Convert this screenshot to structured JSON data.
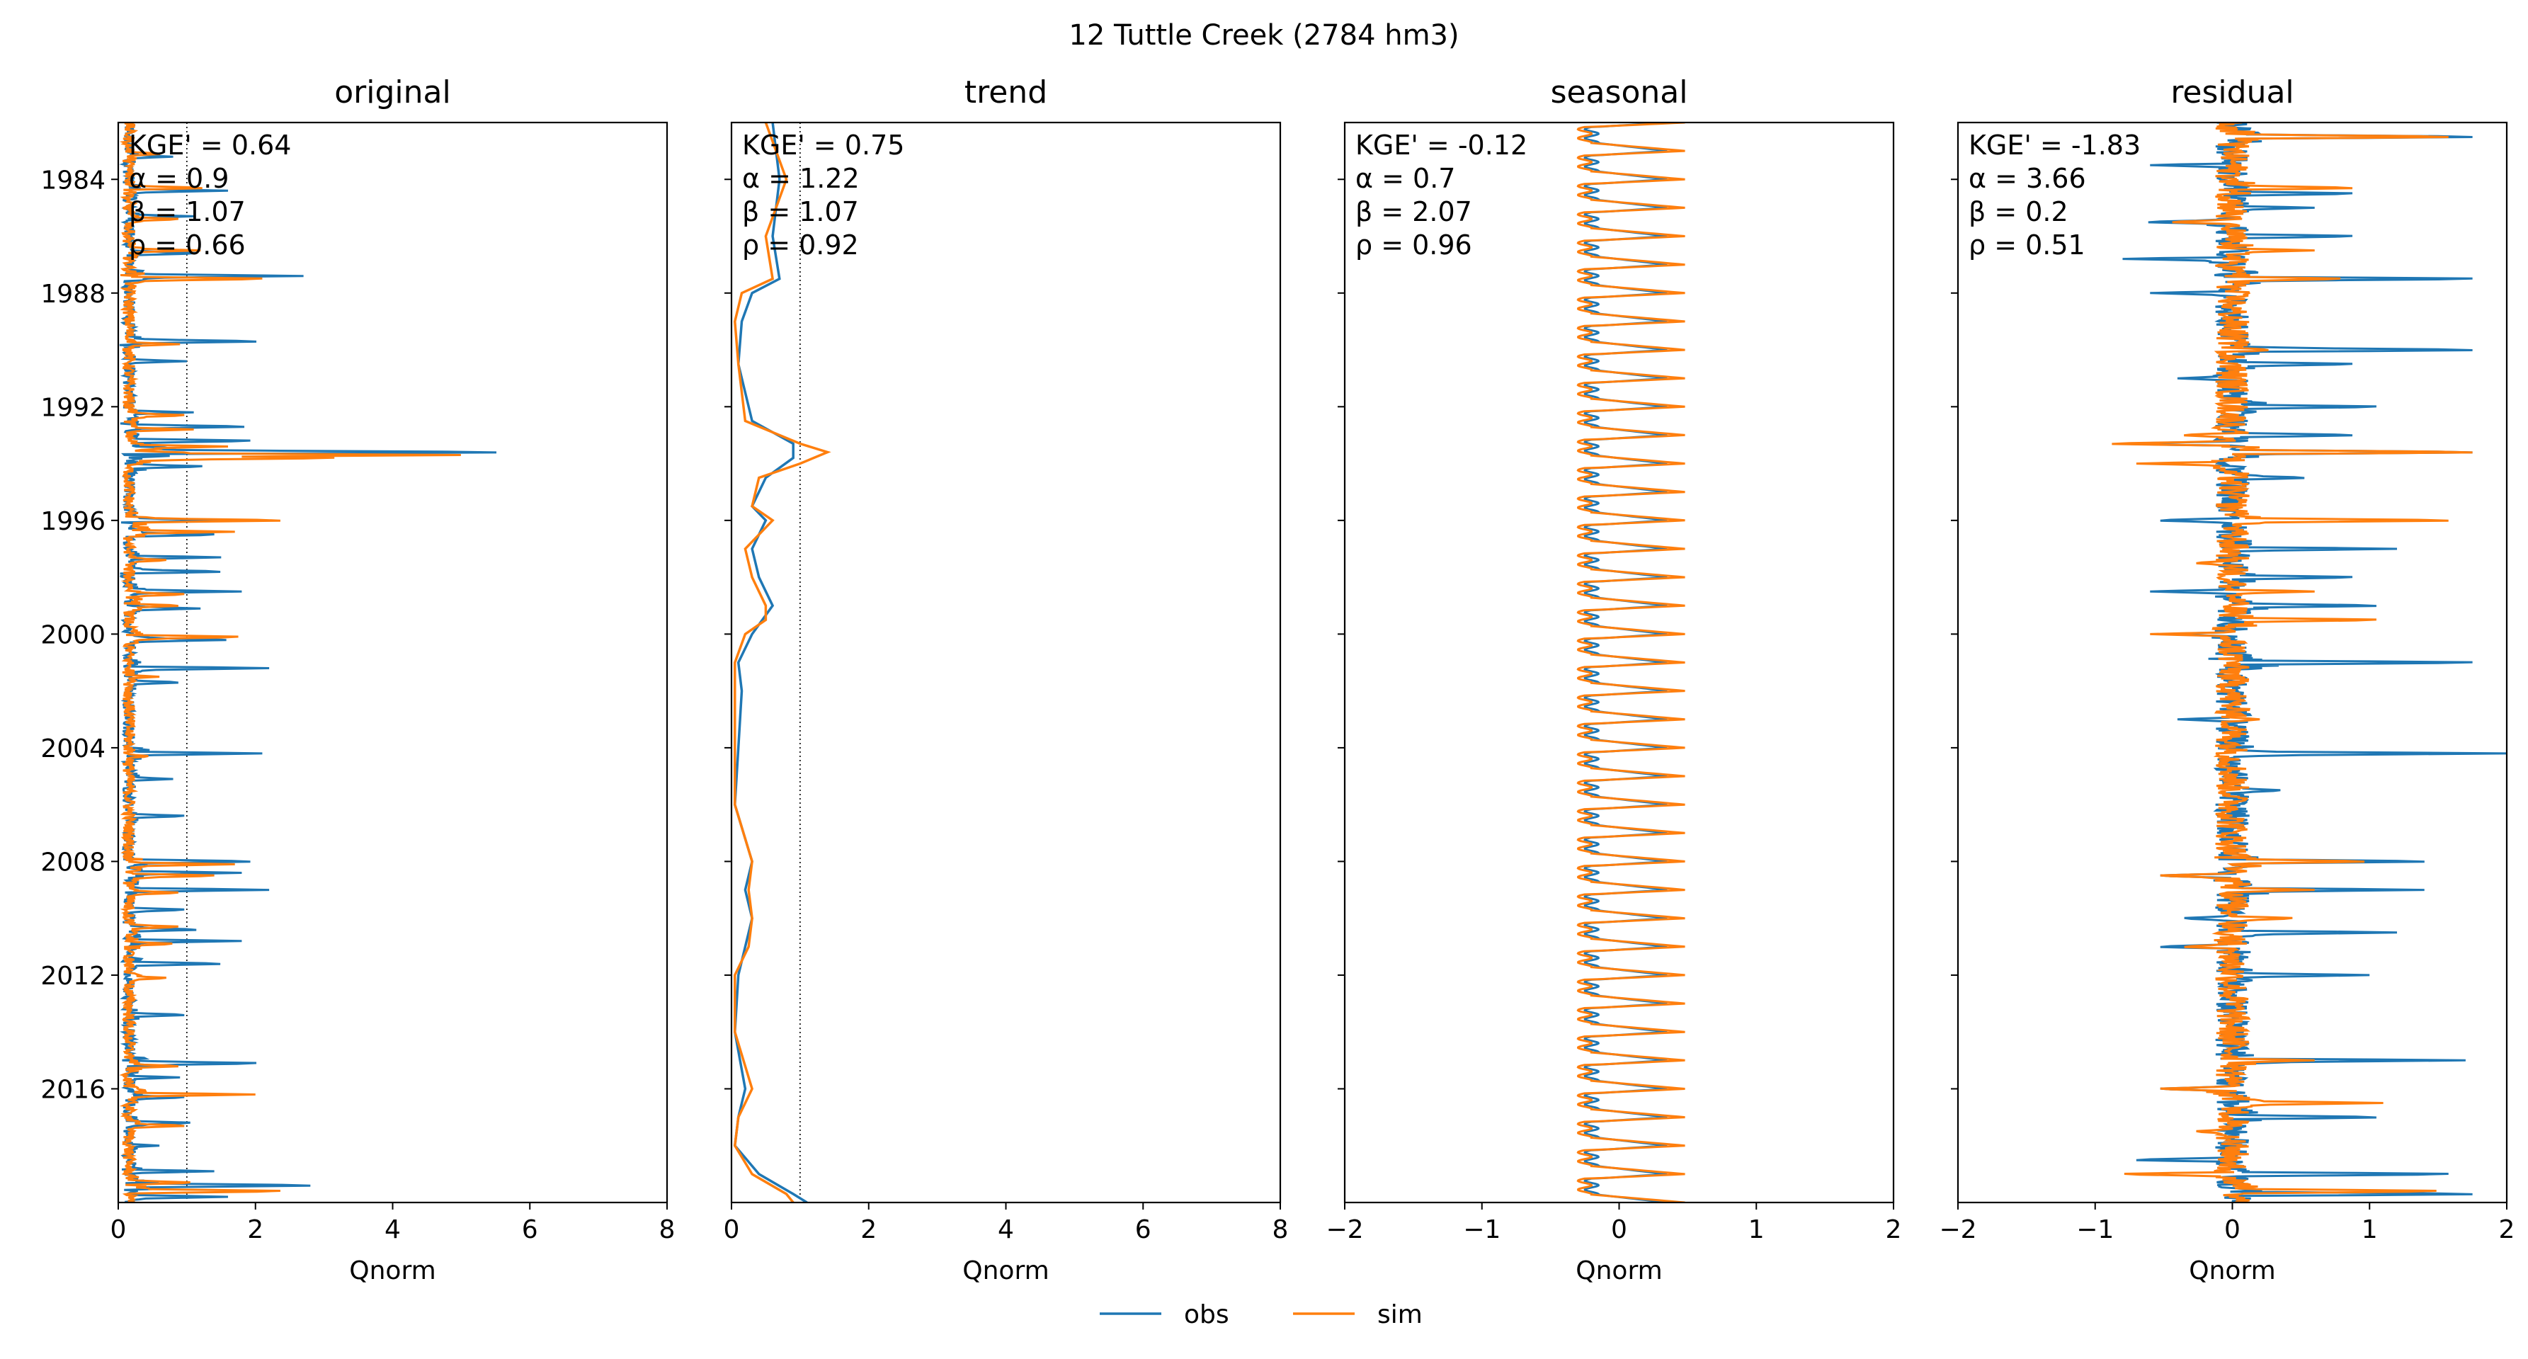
{
  "title": "12  Tuttle Creek (2784 hm3)",
  "colors": {
    "obs": "#1f77b4",
    "sim": "#ff7f0e"
  },
  "legend": [
    {
      "key": "obs",
      "label": "obs"
    },
    {
      "key": "sim",
      "label": "sim"
    }
  ],
  "chart_data": [
    {
      "type": "line",
      "title": "original",
      "xlabel": "Qnorm",
      "xlim": [
        0,
        8
      ],
      "xticks": [
        "0",
        "2",
        "4",
        "6",
        "8"
      ],
      "ylim": [
        1982.0,
        2020.0
      ],
      "yticks": [
        "1984",
        "1988",
        "1992",
        "1996",
        "2000",
        "2004",
        "2008",
        "2012",
        "2016"
      ],
      "ref_lines_x": [
        0.0,
        1.0
      ],
      "metrics": [
        "KGE' = 0.64",
        "α = 0.9",
        "β = 1.07",
        "ρ = 0.66"
      ],
      "series_x": [
        {
          "name": "obs",
          "kind": "original",
          "peaks": [
            [
              1983.2,
              0.8
            ],
            [
              1984.4,
              1.6
            ],
            [
              1985.3,
              1.1
            ],
            [
              1986.6,
              1.3
            ],
            [
              1987.4,
              2.7
            ],
            [
              1989.7,
              2.3
            ],
            [
              1990.4,
              1.0
            ],
            [
              1992.2,
              1.1
            ],
            [
              1992.7,
              2.1
            ],
            [
              1993.2,
              2.2
            ],
            [
              1993.6,
              6.3
            ],
            [
              1994.1,
              1.4
            ],
            [
              1996.0,
              1.7
            ],
            [
              1996.5,
              1.6
            ],
            [
              1997.3,
              1.5
            ],
            [
              1997.8,
              1.7
            ],
            [
              1998.5,
              1.8
            ],
            [
              1999.1,
              1.2
            ],
            [
              2000.2,
              1.8
            ],
            [
              2001.2,
              2.2
            ],
            [
              2001.7,
              1.0
            ],
            [
              2004.2,
              2.1
            ],
            [
              2005.1,
              0.8
            ],
            [
              2006.4,
              1.1
            ],
            [
              2008.0,
              2.2
            ],
            [
              2008.4,
              1.8
            ],
            [
              2009.0,
              2.2
            ],
            [
              2009.7,
              1.1
            ],
            [
              2010.4,
              1.3
            ],
            [
              2010.8,
              1.8
            ],
            [
              2011.6,
              1.7
            ],
            [
              2013.4,
              1.1
            ],
            [
              2015.1,
              2.3
            ],
            [
              2015.6,
              0.9
            ],
            [
              2016.3,
              1.1
            ],
            [
              2017.2,
              1.2
            ],
            [
              2018.0,
              0.6
            ],
            [
              2018.9,
              1.4
            ],
            [
              2019.4,
              3.2
            ],
            [
              2019.8,
              1.6
            ]
          ]
        },
        {
          "name": "sim",
          "kind": "original",
          "peaks": [
            [
              1983.1,
              0.7
            ],
            [
              1984.3,
              1.4
            ],
            [
              1985.4,
              1.0
            ],
            [
              1986.5,
              1.2
            ],
            [
              1987.5,
              2.4
            ],
            [
              1989.8,
              0.9
            ],
            [
              1992.3,
              1.1
            ],
            [
              1992.8,
              1.1
            ],
            [
              1993.4,
              1.6
            ],
            [
              1993.7,
              4.6
            ],
            [
              1993.8,
              3.6
            ],
            [
              1996.0,
              2.7
            ],
            [
              1996.4,
              1.7
            ],
            [
              1997.4,
              0.8
            ],
            [
              1998.6,
              1.1
            ],
            [
              1999.0,
              1.0
            ],
            [
              2000.1,
              2.0
            ],
            [
              2001.5,
              0.6
            ],
            [
              2004.3,
              0.5
            ],
            [
              2008.1,
              1.7
            ],
            [
              2008.5,
              1.6
            ],
            [
              2009.1,
              1.0
            ],
            [
              2010.3,
              1.0
            ],
            [
              2010.9,
              0.9
            ],
            [
              2012.1,
              0.8
            ],
            [
              2015.2,
              1.0
            ],
            [
              2016.2,
              2.0
            ],
            [
              2017.3,
              1.1
            ],
            [
              2019.3,
              1.2
            ],
            [
              2019.6,
              2.7
            ]
          ]
        }
      ]
    },
    {
      "type": "line",
      "title": "trend",
      "xlabel": "Qnorm",
      "xlim": [
        0,
        8
      ],
      "xticks": [
        "0",
        "2",
        "4",
        "6",
        "8"
      ],
      "ylim": [
        1982.0,
        2020.0
      ],
      "yticks": [],
      "ref_lines_x": [
        0.0,
        1.0
      ],
      "metrics": [
        "KGE' = 0.75",
        "α = 1.22",
        "β = 1.07",
        "ρ = 0.92"
      ],
      "series_x": [
        {
          "name": "obs",
          "kind": "trend",
          "points": [
            [
              1982.0,
              0.6
            ],
            [
              1984.0,
              0.7
            ],
            [
              1986.0,
              0.6
            ],
            [
              1987.5,
              0.7
            ],
            [
              1988.0,
              0.3
            ],
            [
              1989.0,
              0.15
            ],
            [
              1990.5,
              0.1
            ],
            [
              1992.5,
              0.3
            ],
            [
              1993.3,
              0.9
            ],
            [
              1993.8,
              0.9
            ],
            [
              1994.5,
              0.5
            ],
            [
              1995.5,
              0.3
            ],
            [
              1996.0,
              0.5
            ],
            [
              1997.0,
              0.3
            ],
            [
              1998.0,
              0.4
            ],
            [
              1999.0,
              0.6
            ],
            [
              2000.0,
              0.3
            ],
            [
              2001.0,
              0.1
            ],
            [
              2002.0,
              0.15
            ],
            [
              2004.0,
              0.1
            ],
            [
              2006.0,
              0.05
            ],
            [
              2008.0,
              0.3
            ],
            [
              2009.0,
              0.2
            ],
            [
              2010.0,
              0.3
            ],
            [
              2011.0,
              0.2
            ],
            [
              2012.0,
              0.1
            ],
            [
              2014.0,
              0.05
            ],
            [
              2016.0,
              0.2
            ],
            [
              2017.0,
              0.1
            ],
            [
              2018.0,
              0.05
            ],
            [
              2019.0,
              0.4
            ],
            [
              2019.7,
              0.9
            ],
            [
              2020.0,
              1.1
            ]
          ]
        },
        {
          "name": "sim",
          "kind": "trend",
          "points": [
            [
              1982.0,
              0.5
            ],
            [
              1984.0,
              0.8
            ],
            [
              1986.0,
              0.5
            ],
            [
              1987.5,
              0.6
            ],
            [
              1988.0,
              0.15
            ],
            [
              1989.0,
              0.05
            ],
            [
              1990.5,
              0.1
            ],
            [
              1992.5,
              0.2
            ],
            [
              1993.3,
              1.0
            ],
            [
              1993.6,
              1.4
            ],
            [
              1994.0,
              1.0
            ],
            [
              1994.5,
              0.4
            ],
            [
              1995.5,
              0.3
            ],
            [
              1996.0,
              0.6
            ],
            [
              1997.0,
              0.2
            ],
            [
              1998.0,
              0.3
            ],
            [
              1999.0,
              0.5
            ],
            [
              1999.5,
              0.5
            ],
            [
              2000.0,
              0.2
            ],
            [
              2001.0,
              0.05
            ],
            [
              2002.0,
              0.05
            ],
            [
              2004.0,
              0.05
            ],
            [
              2006.0,
              0.05
            ],
            [
              2008.0,
              0.3
            ],
            [
              2009.0,
              0.25
            ],
            [
              2010.0,
              0.3
            ],
            [
              2011.0,
              0.25
            ],
            [
              2012.0,
              0.05
            ],
            [
              2014.0,
              0.05
            ],
            [
              2016.0,
              0.3
            ],
            [
              2017.0,
              0.1
            ],
            [
              2018.0,
              0.05
            ],
            [
              2019.0,
              0.3
            ],
            [
              2019.7,
              0.8
            ],
            [
              2020.0,
              0.9
            ]
          ]
        }
      ]
    },
    {
      "type": "line",
      "title": "seasonal",
      "xlabel": "Qnorm",
      "xlim": [
        -2,
        2
      ],
      "xticks": [
        "−2",
        "−1",
        "0",
        "1",
        "2"
      ],
      "ylim": [
        1982.0,
        2020.0
      ],
      "yticks": [],
      "ref_lines_x": [],
      "metrics": [
        "KGE' = -0.12",
        "α = 0.7",
        "β = 2.07",
        "ρ = 0.96"
      ],
      "series_x": [
        {
          "name": "obs",
          "kind": "seasonal",
          "min": -0.2,
          "max": 0.35
        },
        {
          "name": "sim",
          "kind": "seasonal",
          "min": -0.25,
          "max": 0.48
        }
      ]
    },
    {
      "type": "line",
      "title": "residual",
      "xlabel": "Qnorm",
      "xlim": [
        -2,
        2
      ],
      "xticks": [
        "−2",
        "−1",
        "0",
        "1",
        "2"
      ],
      "ylim": [
        1982.0,
        2020.0
      ],
      "yticks": [],
      "ref_lines_x": [],
      "metrics": [
        "KGE' = -1.83",
        "α = 3.66",
        "β = 0.2",
        "ρ = 0.51"
      ],
      "series_x": [
        {
          "name": "obs",
          "kind": "residual",
          "peaks": [
            [
              1982.5,
              2.0
            ],
            [
              1983.5,
              -0.6
            ],
            [
              1984.5,
              1.0
            ],
            [
              1985.0,
              0.6
            ],
            [
              1985.5,
              -0.7
            ],
            [
              1986.0,
              1.0
            ],
            [
              1986.8,
              -0.8
            ],
            [
              1987.5,
              2.0
            ],
            [
              1988.0,
              -0.6
            ],
            [
              1990.0,
              2.0
            ],
            [
              1990.5,
              1.0
            ],
            [
              1991.0,
              -0.4
            ],
            [
              1992.0,
              1.2
            ],
            [
              1993.0,
              1.0
            ],
            [
              1993.3,
              -0.9
            ],
            [
              1993.6,
              2.0
            ],
            [
              1994.5,
              0.6
            ],
            [
              1996.0,
              -0.6
            ],
            [
              1997.0,
              1.2
            ],
            [
              1998.0,
              1.0
            ],
            [
              1998.5,
              -0.6
            ],
            [
              1999.0,
              1.2
            ],
            [
              2000.0,
              -0.5
            ],
            [
              2001.0,
              2.0
            ],
            [
              2003.0,
              -0.4
            ],
            [
              2004.2,
              2.0
            ],
            [
              2005.5,
              0.4
            ],
            [
              2008.0,
              1.6
            ],
            [
              2008.5,
              -0.6
            ],
            [
              2009.0,
              1.4
            ],
            [
              2010.0,
              -0.4
            ],
            [
              2010.5,
              1.2
            ],
            [
              2011.0,
              -0.6
            ],
            [
              2012.0,
              1.0
            ],
            [
              2015.0,
              1.7
            ],
            [
              2016.0,
              -0.6
            ],
            [
              2017.0,
              1.2
            ],
            [
              2018.5,
              -0.8
            ],
            [
              2019.0,
              1.8
            ],
            [
              2019.7,
              2.0
            ]
          ]
        },
        {
          "name": "sim",
          "kind": "residual",
          "peaks": [
            [
              1982.5,
              1.8
            ],
            [
              1984.3,
              1.0
            ],
            [
              1985.5,
              -0.5
            ],
            [
              1986.5,
              0.6
            ],
            [
              1987.5,
              0.9
            ],
            [
              1990.0,
              0.3
            ],
            [
              1993.0,
              -0.4
            ],
            [
              1993.3,
              -1.0
            ],
            [
              1993.6,
              2.0
            ],
            [
              1994.0,
              -0.7
            ],
            [
              1996.0,
              1.8
            ],
            [
              1997.5,
              -0.3
            ],
            [
              1998.5,
              0.6
            ],
            [
              1999.5,
              1.2
            ],
            [
              2000.0,
              -0.6
            ],
            [
              2003.0,
              0.2
            ],
            [
              2008.0,
              1.1
            ],
            [
              2008.5,
              -0.6
            ],
            [
              2009.0,
              0.6
            ],
            [
              2010.0,
              0.5
            ],
            [
              2011.0,
              -0.4
            ],
            [
              2015.0,
              0.6
            ],
            [
              2016.0,
              -0.6
            ],
            [
              2016.5,
              1.1
            ],
            [
              2017.5,
              -0.3
            ],
            [
              2019.0,
              -0.9
            ],
            [
              2019.6,
              1.7
            ]
          ]
        }
      ]
    }
  ]
}
